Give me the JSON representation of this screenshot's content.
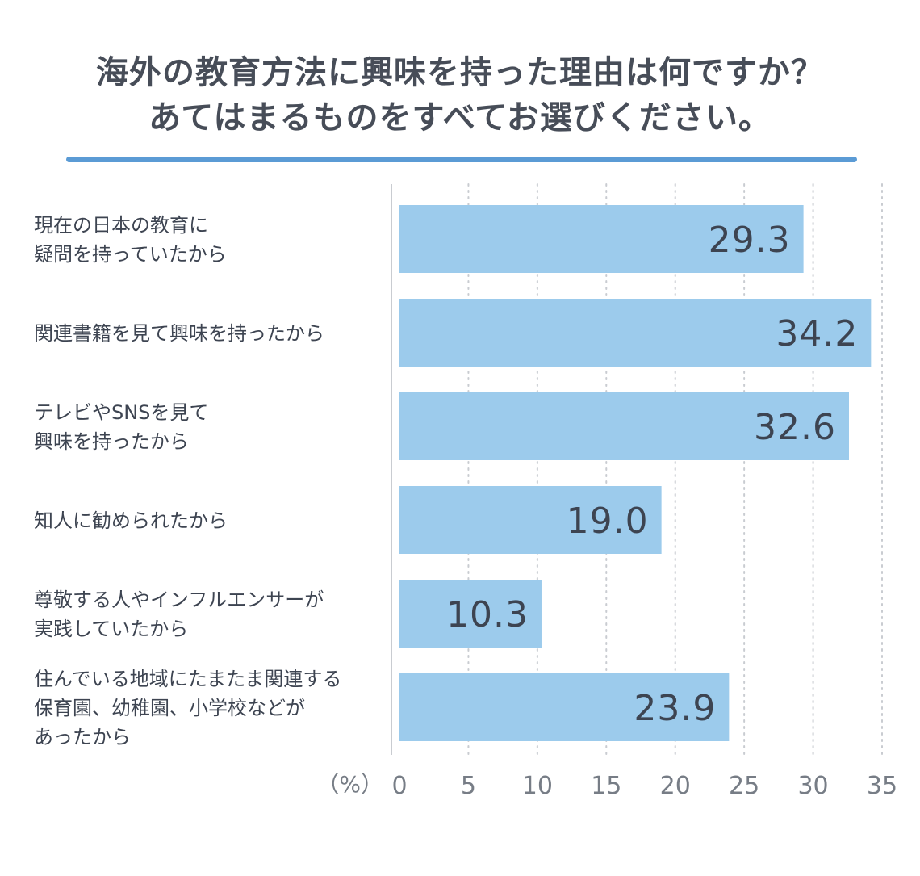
{
  "chart_data": {
    "type": "bar",
    "orientation": "horizontal",
    "title": [
      "海外の教育方法に興味を持った理由は何ですか？",
      "あてはまるものをすべてお選びください。"
    ],
    "categories": [
      [
        "現在の日本の教育に",
        "疑問を持っていたから"
      ],
      [
        "関連書籍を見て興味を持ったから"
      ],
      [
        "テレビやSNSを見て",
        "興味を持ったから"
      ],
      [
        "知人に勧められたから"
      ],
      [
        "尊敬する人やインフルエンサーが",
        "実践していたから"
      ],
      [
        "住んでいる地域にたまたま関連する",
        "保育園、幼稚園、小学校などが",
        "あったから"
      ]
    ],
    "values": [
      29.3,
      34.2,
      32.6,
      19.0,
      10.3,
      23.9
    ],
    "value_labels": [
      "29.3",
      "34.2",
      "32.6",
      "19.0",
      "10.3",
      "23.9"
    ],
    "xlim": [
      0,
      35
    ],
    "xticks": [
      "0",
      "5",
      "10",
      "15",
      "20",
      "25",
      "30",
      "35"
    ],
    "unit_label": "（%）",
    "grid": "vertical-dotted",
    "colors": {
      "bar": "#9ccbec",
      "rule": "#5b9bd5",
      "text": "#3d4451",
      "tick": "#777d86"
    }
  }
}
